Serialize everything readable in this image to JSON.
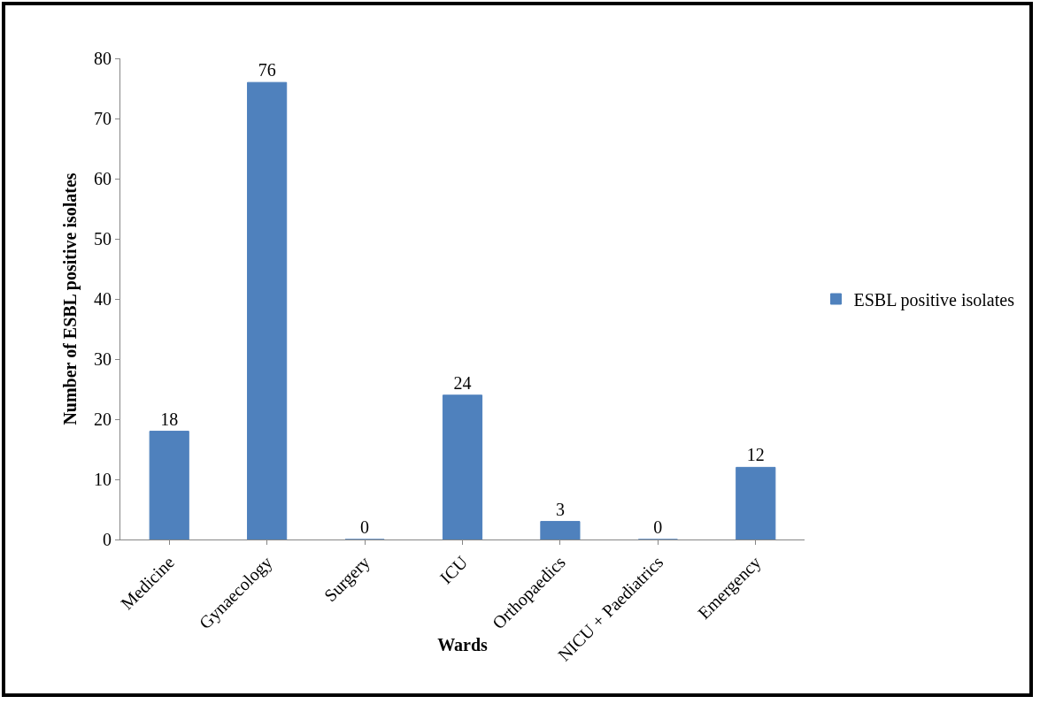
{
  "chart_data": {
    "type": "bar",
    "categories": [
      "Medicine",
      "Gynaecology",
      "Surgery",
      "ICU",
      "Orthopaedics",
      "NICU + Paediatrics",
      "Emergency"
    ],
    "series": [
      {
        "name": "ESBL positive isolates",
        "color": "#4f81bd",
        "values": [
          18,
          76,
          0,
          24,
          3,
          0,
          12
        ]
      }
    ],
    "xlabel": "Wards",
    "ylabel": "Number of ESBL positive isolates",
    "ylim": [
      0,
      80
    ],
    "yticks": [
      0,
      10,
      20,
      30,
      40,
      50,
      60,
      70,
      80
    ],
    "data_labels": true,
    "grid": false,
    "legend": "right"
  }
}
